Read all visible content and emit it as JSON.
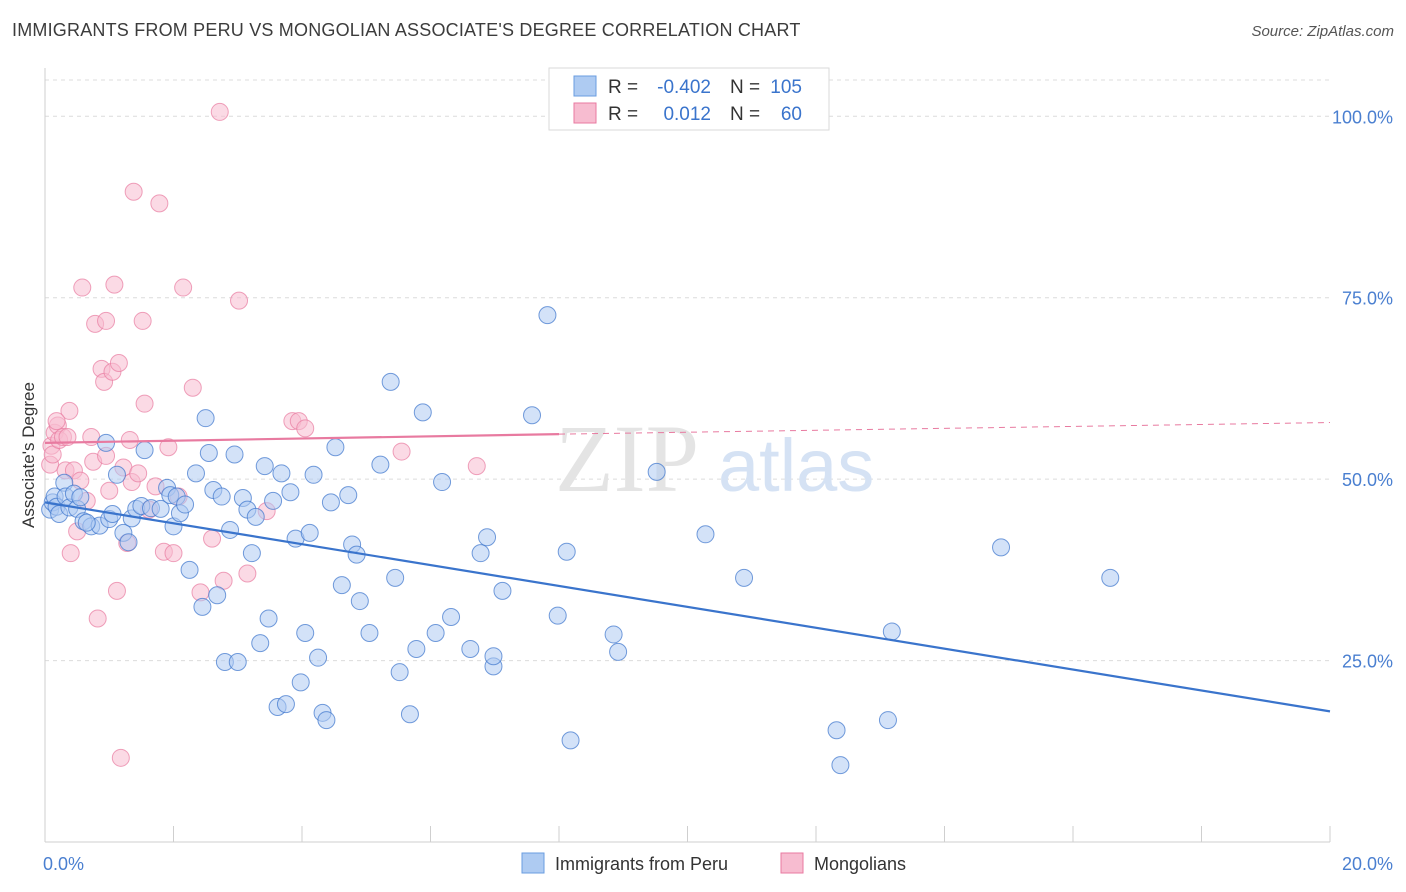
{
  "header": {
    "title": "IMMIGRANTS FROM PERU VS MONGOLIAN ASSOCIATE'S DEGREE CORRELATION CHART",
    "source": "Source: ZipAtlas.com"
  },
  "watermark": {
    "zip": "ZIP",
    "atlas": "atlas"
  },
  "colors": {
    "blue": "#3a74cc",
    "pink": "#e87aa0",
    "blue_fill": "#aecbf2",
    "pink_fill": "#f7bcd0",
    "axis_text": "#4a7fd0"
  },
  "legend": {
    "rows": [
      {
        "r_label": "R =",
        "r_value": "-0.402",
        "n_label": "N =",
        "n_value": "105"
      },
      {
        "r_label": "R =",
        "r_value": "0.012",
        "n_label": "N =",
        "n_value": "60"
      }
    ]
  },
  "bottom_legend": {
    "items": [
      "Immigrants from Peru",
      "Mongolians"
    ]
  },
  "chart_data": {
    "type": "scatter",
    "ylabel": "Associate's Degree",
    "xlim": [
      0,
      20
    ],
    "ylim": [
      0,
      105
    ],
    "x_tick_labels": [
      "0.0%",
      "20.0%"
    ],
    "y_ticks": [
      25,
      50,
      75,
      100
    ],
    "y_tick_labels": [
      "25.0%",
      "50.0%",
      "75.0%",
      "100.0%"
    ],
    "grid": true,
    "series": [
      {
        "name": "Immigrants from Peru",
        "color": "#3a74cc",
        "trend": {
          "x": [
            0,
            20
          ],
          "y": [
            46.8,
            18.0
          ]
        },
        "points": [
          [
            0.08,
            45.8
          ],
          [
            0.12,
            46.8
          ],
          [
            0.15,
            47.6
          ],
          [
            0.18,
            46.2
          ],
          [
            0.22,
            45.2
          ],
          [
            0.3,
            49.5
          ],
          [
            0.32,
            47.6
          ],
          [
            0.38,
            46.1
          ],
          [
            0.45,
            48.0
          ],
          [
            0.5,
            45.9
          ],
          [
            0.55,
            47.5
          ],
          [
            0.6,
            44.2
          ],
          [
            0.72,
            43.5
          ],
          [
            0.85,
            43.6
          ],
          [
            0.95,
            55.0
          ],
          [
            1.0,
            44.5
          ],
          [
            1.12,
            50.6
          ],
          [
            1.22,
            42.6
          ],
          [
            1.3,
            41.3
          ],
          [
            1.35,
            44.6
          ],
          [
            1.42,
            45.9
          ],
          [
            1.5,
            46.3
          ],
          [
            1.55,
            54.0
          ],
          [
            1.65,
            46.0
          ],
          [
            1.8,
            45.9
          ],
          [
            1.9,
            48.8
          ],
          [
            1.95,
            47.8
          ],
          [
            2.0,
            43.5
          ],
          [
            2.05,
            47.6
          ],
          [
            2.1,
            45.3
          ],
          [
            2.18,
            46.5
          ],
          [
            2.25,
            37.5
          ],
          [
            2.35,
            50.8
          ],
          [
            2.45,
            32.4
          ],
          [
            2.5,
            58.4
          ],
          [
            2.55,
            53.6
          ],
          [
            2.62,
            48.5
          ],
          [
            2.68,
            34.0
          ],
          [
            2.75,
            47.6
          ],
          [
            2.8,
            24.8
          ],
          [
            2.88,
            43.0
          ],
          [
            2.95,
            53.4
          ],
          [
            3.0,
            24.8
          ],
          [
            3.08,
            47.4
          ],
          [
            3.15,
            45.8
          ],
          [
            3.22,
            39.8
          ],
          [
            3.28,
            44.8
          ],
          [
            3.35,
            27.4
          ],
          [
            3.42,
            51.8
          ],
          [
            3.48,
            30.8
          ],
          [
            3.55,
            47.0
          ],
          [
            3.62,
            18.6
          ],
          [
            3.68,
            50.8
          ],
          [
            3.75,
            19.0
          ],
          [
            3.82,
            48.2
          ],
          [
            3.9,
            41.8
          ],
          [
            3.98,
            22.0
          ],
          [
            4.05,
            28.8
          ],
          [
            4.12,
            42.6
          ],
          [
            4.18,
            50.6
          ],
          [
            4.25,
            25.4
          ],
          [
            4.32,
            17.8
          ],
          [
            4.38,
            16.8
          ],
          [
            4.45,
            46.8
          ],
          [
            4.52,
            54.4
          ],
          [
            4.62,
            35.4
          ],
          [
            4.72,
            47.8
          ],
          [
            4.78,
            41.0
          ],
          [
            4.85,
            39.6
          ],
          [
            4.9,
            33.2
          ],
          [
            5.05,
            28.8
          ],
          [
            5.22,
            52.0
          ],
          [
            5.38,
            63.4
          ],
          [
            5.45,
            36.4
          ],
          [
            5.52,
            23.4
          ],
          [
            5.68,
            17.6
          ],
          [
            5.78,
            26.6
          ],
          [
            5.88,
            59.2
          ],
          [
            6.08,
            28.8
          ],
          [
            6.18,
            49.6
          ],
          [
            6.32,
            31.0
          ],
          [
            6.62,
            26.6
          ],
          [
            6.78,
            39.8
          ],
          [
            6.88,
            42.0
          ],
          [
            6.98,
            24.2
          ],
          [
            6.98,
            25.6
          ],
          [
            7.12,
            34.6
          ],
          [
            7.58,
            58.8
          ],
          [
            7.82,
            72.6
          ],
          [
            7.98,
            31.2
          ],
          [
            8.12,
            40.0
          ],
          [
            8.18,
            14.0
          ],
          [
            8.85,
            28.6
          ],
          [
            8.92,
            26.2
          ],
          [
            9.52,
            51.0
          ],
          [
            10.28,
            42.4
          ],
          [
            10.88,
            36.4
          ],
          [
            12.32,
            15.4
          ],
          [
            12.38,
            10.6
          ],
          [
            13.12,
            16.8
          ],
          [
            13.18,
            29.0
          ],
          [
            14.88,
            40.6
          ],
          [
            16.58,
            36.4
          ],
          [
            1.05,
            45.2
          ],
          [
            0.65,
            44.0
          ]
        ]
      },
      {
        "name": "Mongolians",
        "color": "#e87aa0",
        "trend": {
          "x": [
            0,
            8
          ],
          "y": [
            55.0,
            56.2
          ]
        },
        "trend_dashed": {
          "x": [
            8,
            20
          ],
          "y": [
            56.2,
            57.8
          ]
        },
        "points": [
          [
            0.08,
            52.0
          ],
          [
            0.1,
            54.6
          ],
          [
            0.12,
            53.4
          ],
          [
            0.15,
            56.4
          ],
          [
            0.2,
            57.4
          ],
          [
            0.22,
            55.4
          ],
          [
            0.28,
            55.8
          ],
          [
            0.32,
            51.2
          ],
          [
            0.38,
            59.4
          ],
          [
            0.4,
            39.8
          ],
          [
            0.45,
            51.2
          ],
          [
            0.5,
            42.8
          ],
          [
            0.55,
            49.8
          ],
          [
            0.58,
            76.4
          ],
          [
            0.65,
            47.0
          ],
          [
            0.72,
            55.8
          ],
          [
            0.75,
            52.4
          ],
          [
            0.78,
            71.4
          ],
          [
            0.82,
            30.8
          ],
          [
            0.88,
            65.2
          ],
          [
            0.92,
            63.4
          ],
          [
            0.95,
            53.2
          ],
          [
            1.0,
            48.4
          ],
          [
            1.05,
            64.8
          ],
          [
            1.08,
            76.8
          ],
          [
            1.12,
            34.6
          ],
          [
            1.15,
            66.0
          ],
          [
            1.18,
            11.6
          ],
          [
            1.22,
            51.6
          ],
          [
            1.28,
            41.2
          ],
          [
            1.32,
            55.4
          ],
          [
            1.35,
            49.6
          ],
          [
            1.38,
            89.6
          ],
          [
            1.45,
            50.8
          ],
          [
            1.52,
            71.8
          ],
          [
            1.55,
            60.4
          ],
          [
            1.62,
            45.8
          ],
          [
            1.72,
            49.0
          ],
          [
            1.78,
            88.0
          ],
          [
            1.85,
            40.0
          ],
          [
            1.92,
            54.4
          ],
          [
            2.0,
            39.8
          ],
          [
            2.08,
            47.6
          ],
          [
            2.15,
            76.4
          ],
          [
            2.3,
            62.6
          ],
          [
            2.42,
            34.4
          ],
          [
            2.6,
            41.8
          ],
          [
            2.72,
            100.6
          ],
          [
            2.78,
            36.0
          ],
          [
            3.02,
            74.6
          ],
          [
            3.15,
            37.0
          ],
          [
            3.45,
            45.6
          ],
          [
            3.85,
            58.0
          ],
          [
            3.95,
            58.0
          ],
          [
            4.05,
            57.0
          ],
          [
            5.55,
            53.8
          ],
          [
            6.72,
            51.8
          ],
          [
            0.18,
            58.0
          ],
          [
            0.35,
            55.8
          ],
          [
            0.95,
            71.8
          ]
        ]
      }
    ]
  }
}
